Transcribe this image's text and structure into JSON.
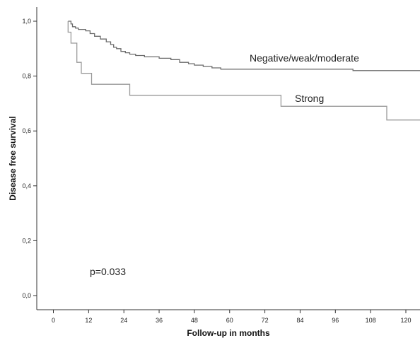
{
  "chart_data": {
    "type": "line",
    "subtype": "kaplan-meier step",
    "xlabel": "Follow-up in months",
    "ylabel": "Disease free survival",
    "xlim": [
      0,
      126
    ],
    "ylim": [
      0,
      1.05
    ],
    "x_ticks": [
      0,
      12,
      24,
      36,
      48,
      60,
      72,
      84,
      96,
      108,
      120
    ],
    "y_ticks": [
      {
        "value": 0.0,
        "label": "0,0"
      },
      {
        "value": 0.2,
        "label": "0,2"
      },
      {
        "value": 0.4,
        "label": "0,4"
      },
      {
        "value": 0.6,
        "label": "0,6"
      },
      {
        "value": 0.8,
        "label": "0,8"
      },
      {
        "value": 1.0,
        "label": "1,0"
      }
    ],
    "grid": false,
    "annotation": "p=0.033",
    "series": [
      {
        "name": "Negative/weak/moderate",
        "color": "#6a6a6a",
        "points": [
          [
            5,
            1.0
          ],
          [
            6,
            0.99
          ],
          [
            6.5,
            0.98
          ],
          [
            7.5,
            0.975
          ],
          [
            8.5,
            0.97
          ],
          [
            11,
            0.965
          ],
          [
            12.5,
            0.955
          ],
          [
            14,
            0.945
          ],
          [
            16,
            0.935
          ],
          [
            18,
            0.925
          ],
          [
            19.5,
            0.915
          ],
          [
            20.5,
            0.905
          ],
          [
            21.5,
            0.9
          ],
          [
            23,
            0.89
          ],
          [
            24.5,
            0.885
          ],
          [
            26,
            0.88
          ],
          [
            28,
            0.875
          ],
          [
            31,
            0.87
          ],
          [
            36,
            0.865
          ],
          [
            40,
            0.86
          ],
          [
            43,
            0.85
          ],
          [
            46,
            0.845
          ],
          [
            48,
            0.84
          ],
          [
            51,
            0.835
          ],
          [
            54,
            0.83
          ],
          [
            57,
            0.825
          ],
          [
            102,
            0.82
          ],
          [
            126,
            0.82
          ]
        ]
      },
      {
        "name": "Strong",
        "color": "#9a9a9a",
        "points": [
          [
            5,
            1.0
          ],
          [
            5,
            0.96
          ],
          [
            6,
            0.92
          ],
          [
            8,
            0.85
          ],
          [
            9.5,
            0.81
          ],
          [
            13,
            0.77
          ],
          [
            26,
            0.73
          ],
          [
            74,
            0.73
          ],
          [
            77.5,
            0.69
          ],
          [
            112,
            0.69
          ],
          [
            113.5,
            0.64
          ],
          [
            126,
            0.64
          ]
        ]
      }
    ]
  }
}
